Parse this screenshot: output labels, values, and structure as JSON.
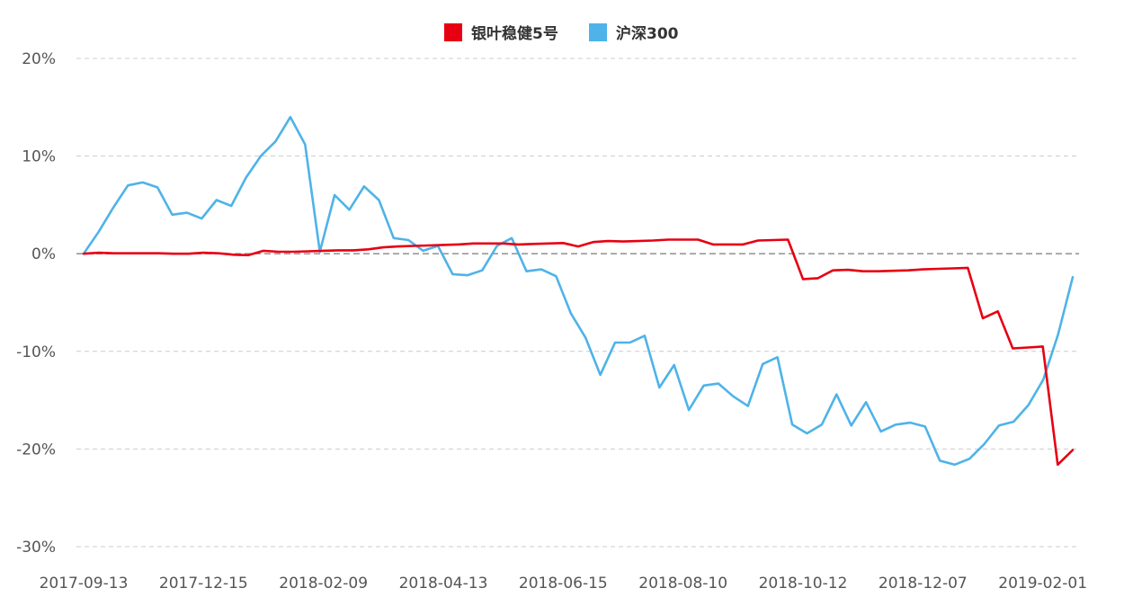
{
  "chart_data": {
    "type": "line",
    "title": "",
    "xlabel": "",
    "ylabel": "",
    "ylim": [
      -30,
      20
    ],
    "y_ticks": [
      20,
      10,
      0,
      -10,
      -20,
      -30
    ],
    "y_tick_labels": [
      "20%",
      "10%",
      "0%",
      "-10%",
      "-20%",
      "-30%"
    ],
    "x_tick_labels": [
      "2017-09-13",
      "2017-12-15",
      "2018-02-09",
      "2018-04-13",
      "2018-06-15",
      "2018-08-10",
      "2018-10-12",
      "2018-12-07",
      "2019-02-01"
    ],
    "x_tick_indices": [
      0,
      8,
      16,
      24,
      32,
      40,
      48,
      56,
      64
    ],
    "legend_position": "top-center",
    "grid": true,
    "series": [
      {
        "name": "银叶稳健5号",
        "color": "#e60012",
        "values": [
          0.0,
          0.1,
          0.05,
          0.05,
          0.05,
          0.05,
          0.0,
          0.0,
          0.1,
          0.05,
          -0.1,
          -0.15,
          0.3,
          0.2,
          0.2,
          0.25,
          0.3,
          0.35,
          0.35,
          0.45,
          0.65,
          0.75,
          0.8,
          0.85,
          0.9,
          0.95,
          1.05,
          1.05,
          1.05,
          0.95,
          1.0,
          1.05,
          1.1,
          0.75,
          1.2,
          1.3,
          1.25,
          1.3,
          1.35,
          1.45,
          1.45,
          1.45,
          0.95,
          0.95,
          0.95,
          1.35,
          1.4,
          1.45,
          -2.6,
          -2.5,
          -1.7,
          -1.65,
          -1.8,
          -1.8,
          -1.75,
          -1.7,
          -1.6,
          -1.55,
          -1.5,
          -1.45,
          -6.6,
          -5.9,
          -9.7,
          -9.6,
          -9.5,
          -21.6,
          -20.1
        ]
      },
      {
        "name": "沪深300",
        "color": "#4eb3e8",
        "values": [
          0.0,
          2.2,
          4.7,
          7.0,
          7.3,
          6.8,
          4.0,
          4.2,
          3.6,
          5.5,
          4.9,
          7.8,
          10.0,
          11.5,
          14.0,
          11.2,
          0.2,
          6.0,
          4.5,
          6.9,
          5.5,
          1.6,
          1.4,
          0.3,
          0.8,
          -2.1,
          -2.2,
          -1.7,
          0.8,
          1.6,
          -1.8,
          -1.6,
          -2.3,
          -6.1,
          -8.6,
          -12.4,
          -9.1,
          -9.1,
          -8.4,
          -13.7,
          -11.4,
          -16.0,
          -13.5,
          -13.3,
          -14.6,
          -15.6,
          -11.3,
          -10.6,
          -17.5,
          -18.4,
          -17.5,
          -14.4,
          -17.6,
          -15.2,
          -18.2,
          -17.5,
          -17.3,
          -17.7,
          -21.2,
          -21.6,
          -21.0,
          -19.5,
          -17.6,
          -17.2,
          -15.5,
          -12.9,
          -8.3,
          -2.4
        ]
      }
    ]
  }
}
